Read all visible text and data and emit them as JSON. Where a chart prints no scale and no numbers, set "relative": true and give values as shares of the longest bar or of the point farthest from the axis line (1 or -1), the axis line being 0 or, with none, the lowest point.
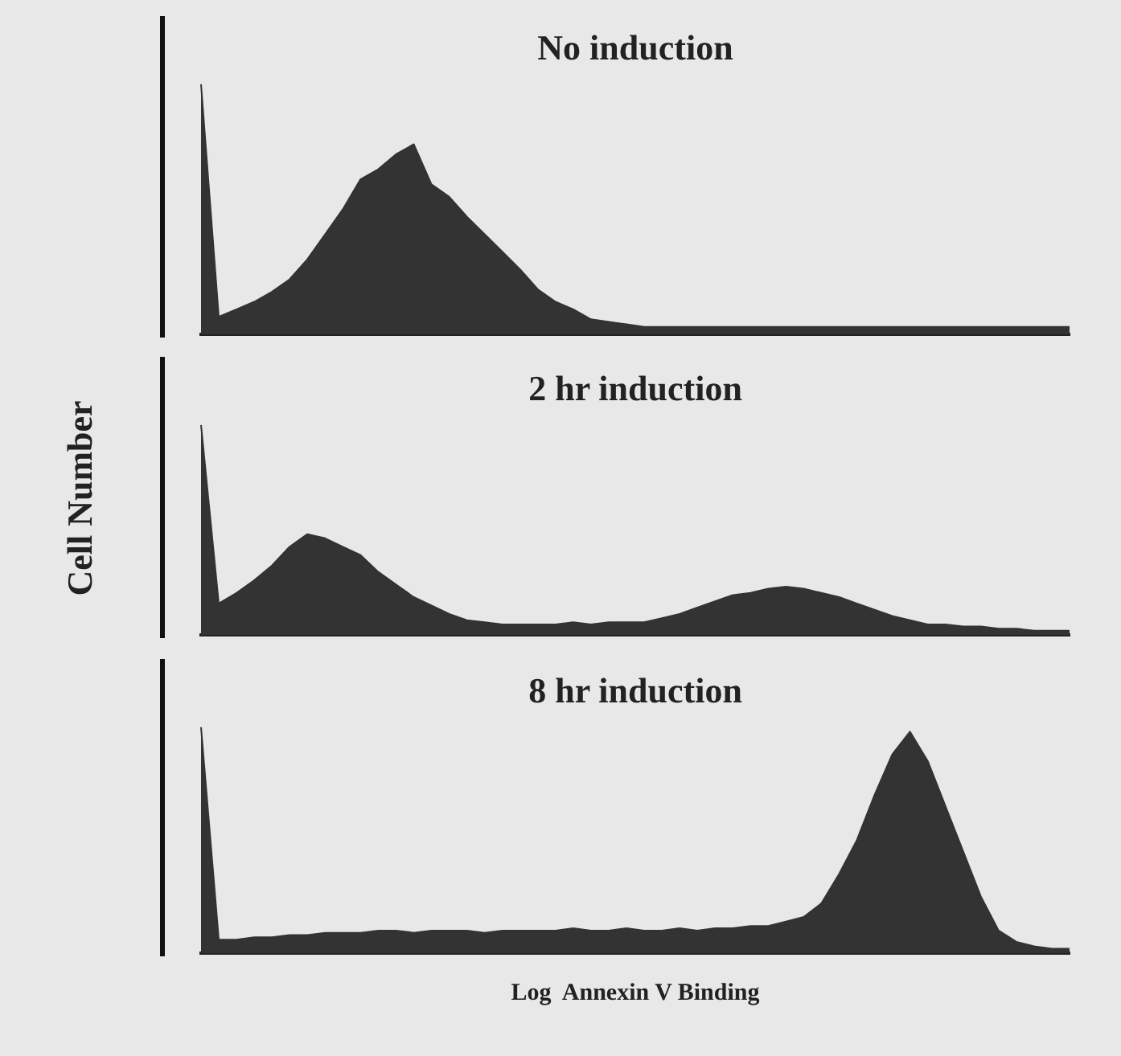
{
  "chart_data": [
    {
      "type": "area",
      "title": "No induction",
      "relative": true,
      "grid": false,
      "tick_labels": false,
      "legend": false,
      "categories": [
        null,
        null,
        null,
        null,
        null,
        null,
        null,
        null,
        null,
        null,
        null,
        null,
        null,
        null,
        null,
        null,
        null,
        null,
        null,
        null,
        null,
        null,
        null,
        null,
        null,
        null,
        null,
        null,
        null,
        null,
        null,
        null,
        null,
        null,
        null,
        null,
        null,
        null,
        null,
        null,
        null,
        null,
        null,
        null,
        null,
        null,
        null,
        null,
        null,
        null
      ],
      "series": [
        {
          "color": "#333333",
          "values": [
            1,
            0.07,
            0.1,
            0.13,
            0.17,
            0.22,
            0.3,
            0.4,
            0.5,
            0.62,
            0.66,
            0.72,
            0.76,
            0.6,
            0.55,
            0.47,
            0.4,
            0.33,
            0.26,
            0.18,
            0.13,
            0.1,
            0.06,
            0.05,
            0.04,
            0.03,
            0.03,
            0.03,
            0.03,
            0.03,
            0.03,
            0.03,
            0.03,
            0.03,
            0.03,
            0.03,
            0.03,
            0.03,
            0.03,
            0.03,
            0.03,
            0.03,
            0.03,
            0.03,
            0.03,
            0.03,
            0.03,
            0.03,
            0.03,
            0.03
          ]
        }
      ]
    },
    {
      "type": "area",
      "title": "2 hr induction",
      "ylabel": "Cell Number",
      "relative": true,
      "grid": false,
      "tick_labels": false,
      "legend": false,
      "categories": [
        null,
        null,
        null,
        null,
        null,
        null,
        null,
        null,
        null,
        null,
        null,
        null,
        null,
        null,
        null,
        null,
        null,
        null,
        null,
        null,
        null,
        null,
        null,
        null,
        null,
        null,
        null,
        null,
        null,
        null,
        null,
        null,
        null,
        null,
        null,
        null,
        null,
        null,
        null,
        null,
        null,
        null,
        null,
        null,
        null,
        null,
        null,
        null,
        null,
        null
      ],
      "series": [
        {
          "color": "#333333",
          "values": [
            1,
            0.15,
            0.2,
            0.26,
            0.33,
            0.42,
            0.48,
            0.46,
            0.42,
            0.38,
            0.3,
            0.24,
            0.18,
            0.14,
            0.1,
            0.07,
            0.06,
            0.05,
            0.05,
            0.05,
            0.05,
            0.06,
            0.05,
            0.06,
            0.06,
            0.06,
            0.08,
            0.1,
            0.13,
            0.16,
            0.19,
            0.2,
            0.22,
            0.23,
            0.22,
            0.2,
            0.18,
            0.15,
            0.12,
            0.09,
            0.07,
            0.05,
            0.05,
            0.04,
            0.04,
            0.03,
            0.03,
            0.02,
            0.02,
            0.02
          ]
        }
      ]
    },
    {
      "type": "area",
      "title": "8 hr induction",
      "xlabel": "Log  Annexin V Binding",
      "relative": true,
      "grid": false,
      "tick_labels": false,
      "legend": false,
      "categories": [
        null,
        null,
        null,
        null,
        null,
        null,
        null,
        null,
        null,
        null,
        null,
        null,
        null,
        null,
        null,
        null,
        null,
        null,
        null,
        null,
        null,
        null,
        null,
        null,
        null,
        null,
        null,
        null,
        null,
        null,
        null,
        null,
        null,
        null,
        null,
        null,
        null,
        null,
        null,
        null,
        null,
        null,
        null,
        null,
        null,
        null,
        null,
        null,
        null,
        null
      ],
      "series": [
        {
          "color": "#333333",
          "values": [
            1,
            0.06,
            0.06,
            0.07,
            0.07,
            0.08,
            0.08,
            0.09,
            0.09,
            0.09,
            0.1,
            0.1,
            0.09,
            0.1,
            0.1,
            0.1,
            0.09,
            0.1,
            0.1,
            0.1,
            0.1,
            0.11,
            0.1,
            0.1,
            0.11,
            0.1,
            0.1,
            0.11,
            0.1,
            0.11,
            0.11,
            0.12,
            0.12,
            0.14,
            0.16,
            0.22,
            0.35,
            0.5,
            0.7,
            0.88,
            0.98,
            0.85,
            0.65,
            0.45,
            0.25,
            0.1,
            0.05,
            0.03,
            0.02,
            0.02
          ]
        }
      ]
    }
  ]
}
